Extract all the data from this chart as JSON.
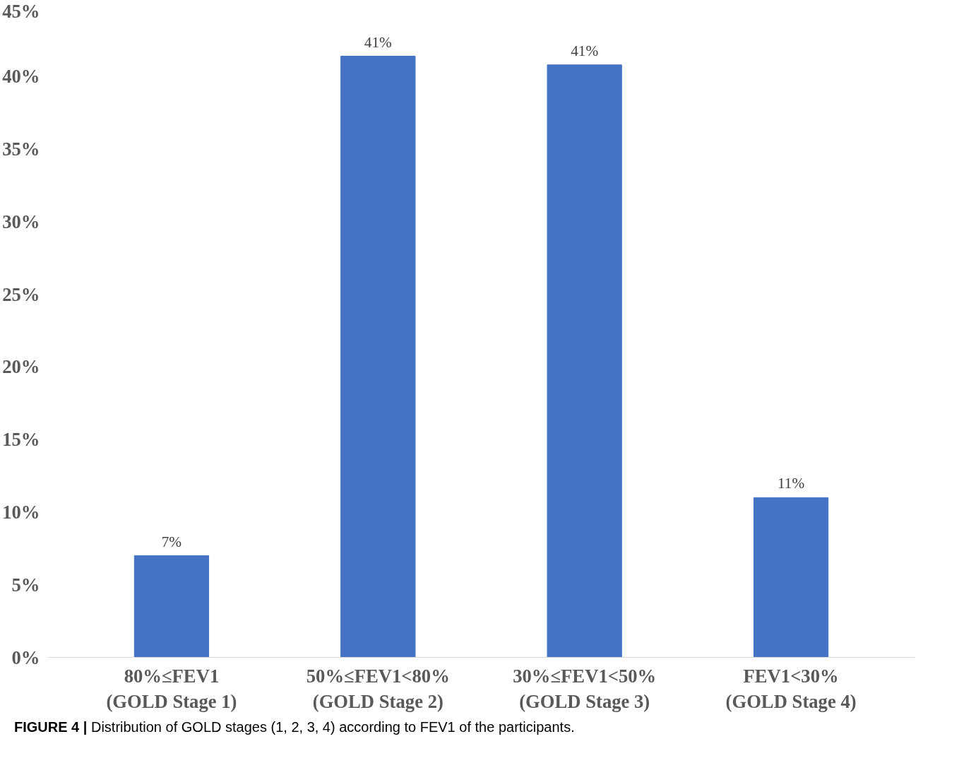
{
  "chart_data": {
    "type": "bar",
    "categories": [
      "80%≤FEV1\n(GOLD Stage 1)",
      "50%≤FEV1<80%\n(GOLD Stage 2)",
      "30%≤FEV1<50%\n(GOLD Stage 3)",
      "FEV1<30%\n(GOLD Stage 4)"
    ],
    "values": [
      7.0,
      41.4,
      40.8,
      11.0
    ],
    "value_labels": [
      "7%",
      "41%",
      "41%",
      "11%"
    ],
    "color": "#4472c4",
    "ylim": [
      0,
      45
    ],
    "yticks": [
      {
        "value": 0,
        "label": "0%"
      },
      {
        "value": 5,
        "label": "5%"
      },
      {
        "value": 10,
        "label": "10%"
      },
      {
        "value": 15,
        "label": "15%"
      },
      {
        "value": 20,
        "label": "20%"
      },
      {
        "value": 25,
        "label": "25%"
      },
      {
        "value": 30,
        "label": "30%"
      },
      {
        "value": 35,
        "label": "35%"
      },
      {
        "value": 40,
        "label": "40%"
      },
      {
        "value": 45,
        "label": "45%"
      }
    ],
    "grid": false,
    "annotations": [
      "FIGURE 4 | Distribution of GOLD stages (1, 2, 3, 4) according to FEV1 of the participants."
    ]
  }
}
